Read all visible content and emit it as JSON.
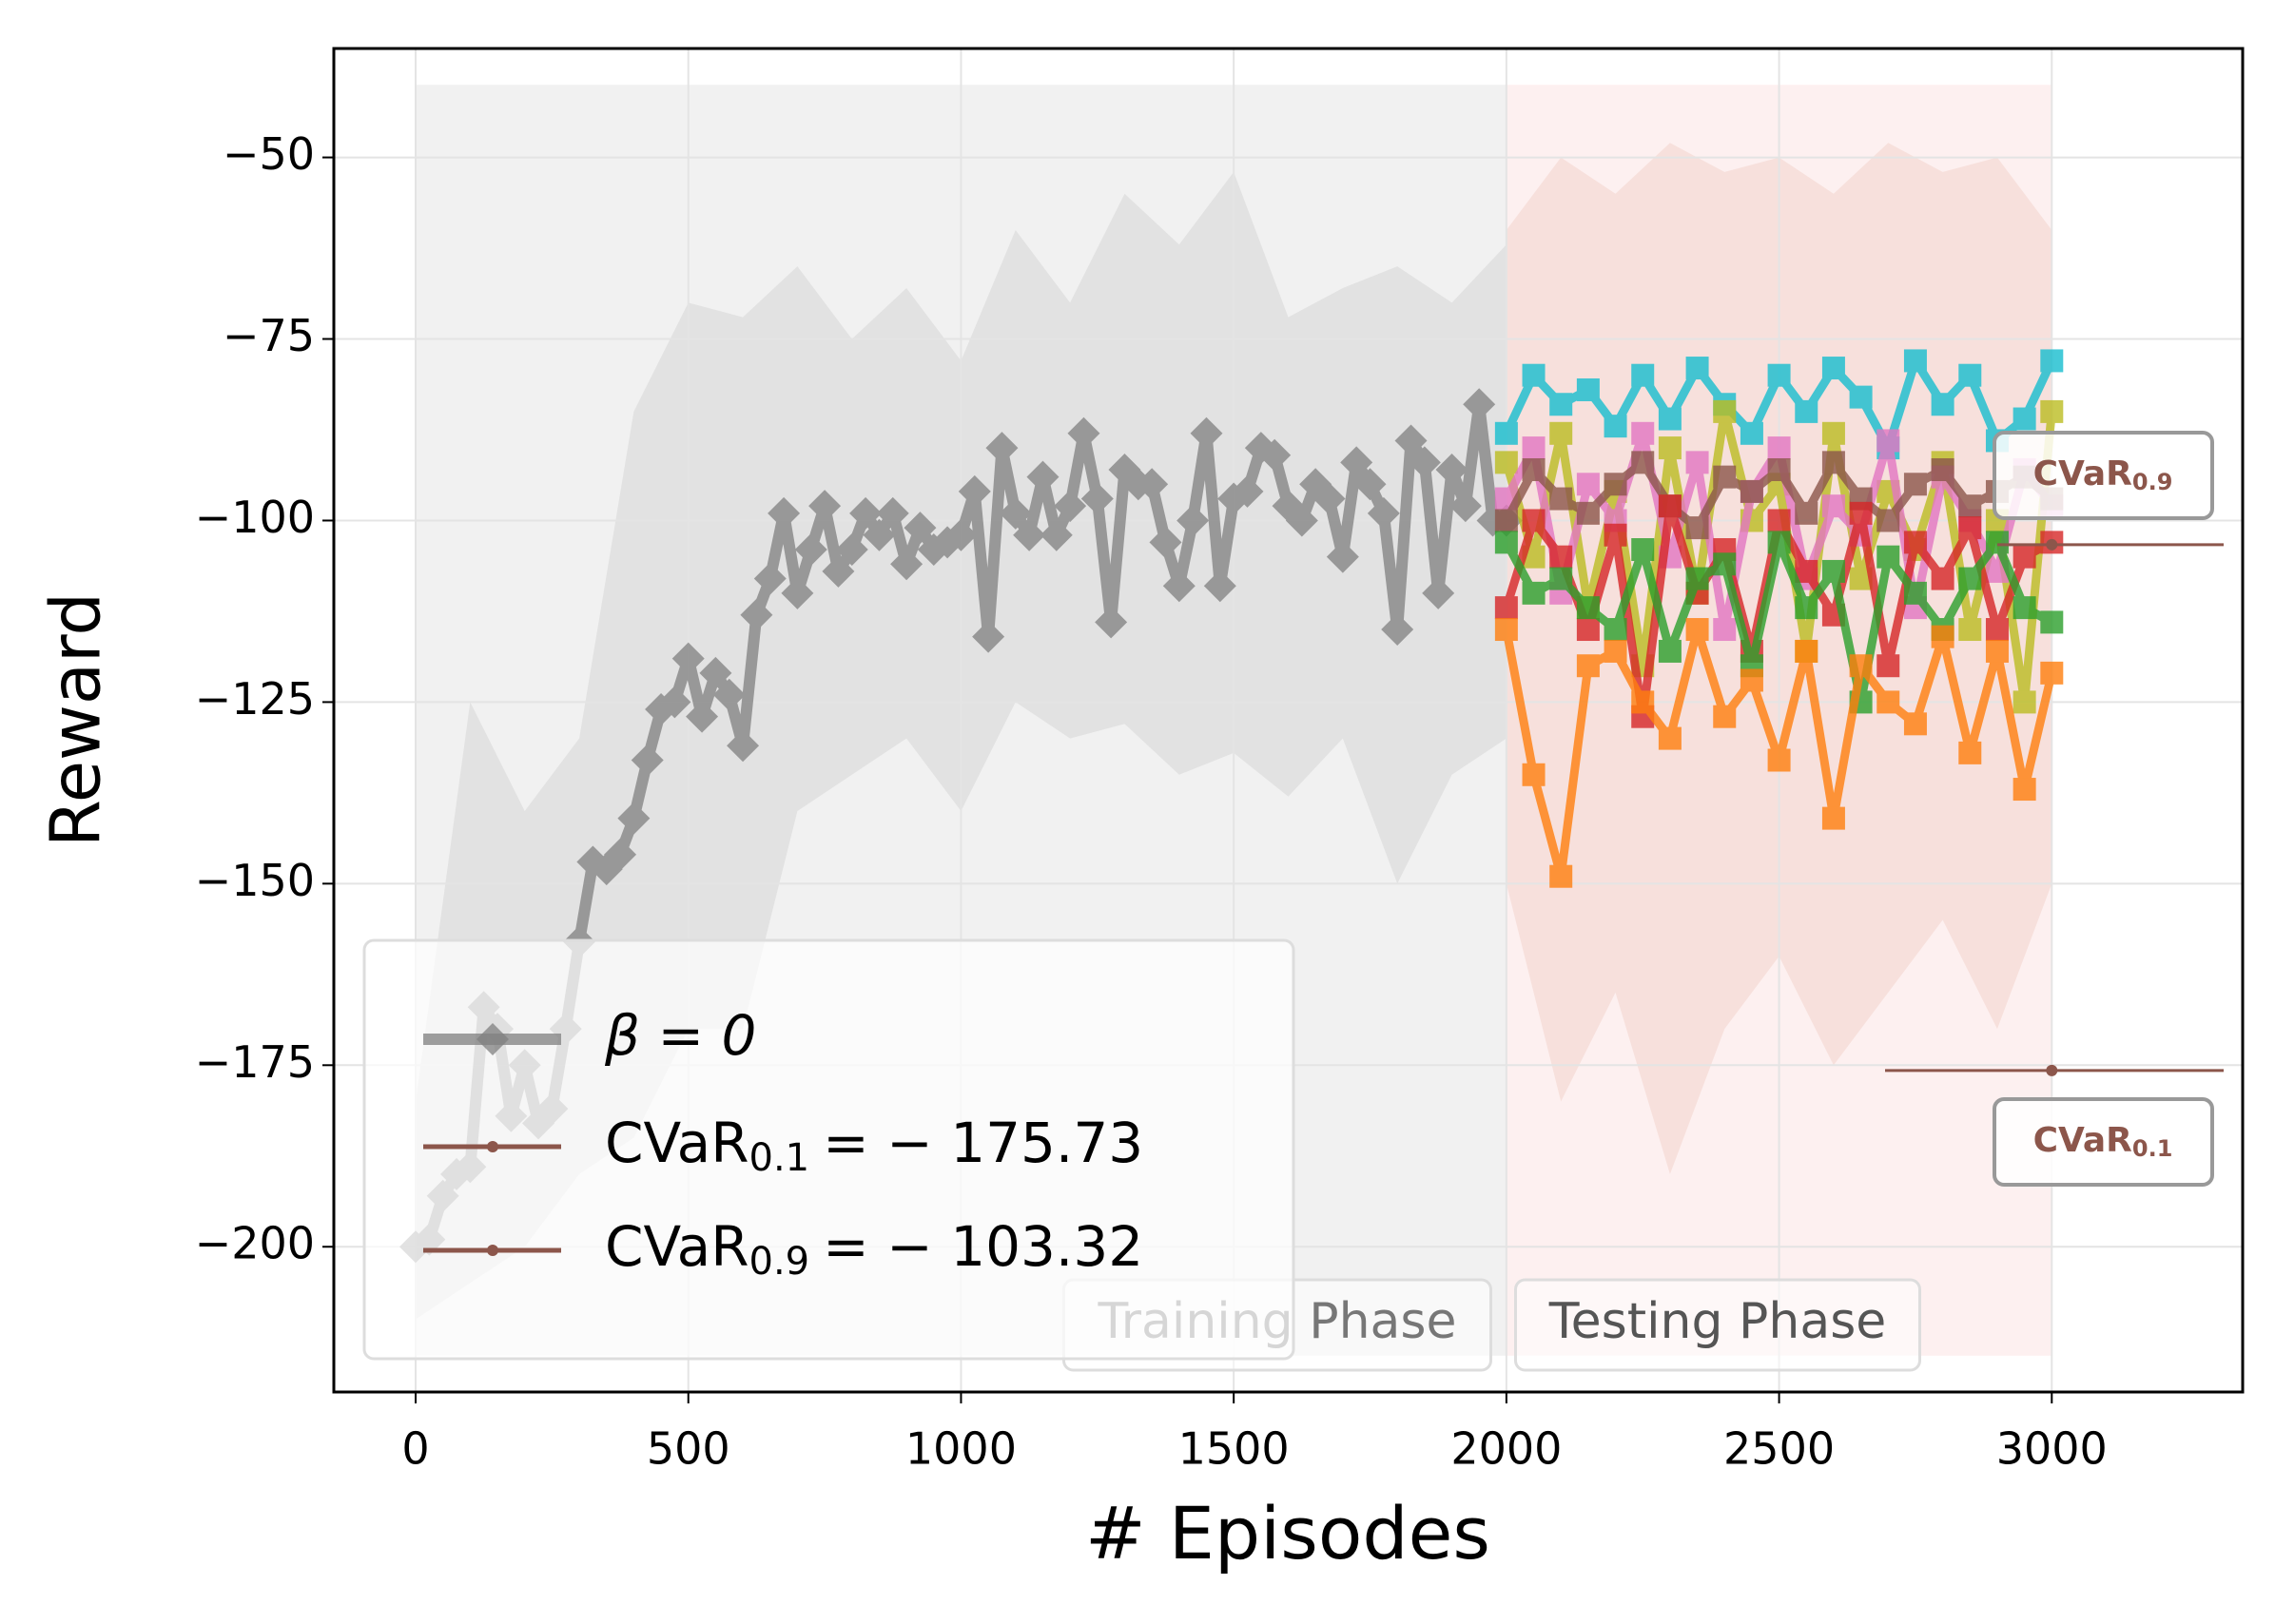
{
  "chart_data": {
    "type": "line",
    "xlabel": "# Episodes",
    "ylabel": "Reward",
    "xlim": [
      -150,
      3350
    ],
    "ylim": [
      -220,
      -35
    ],
    "xticks": [
      0,
      500,
      1000,
      1500,
      2000,
      2500,
      3000
    ],
    "yticks": [
      {
        "value": -50,
        "label": "−50"
      },
      {
        "value": -75,
        "label": "−75"
      },
      {
        "value": -100,
        "label": "−100"
      },
      {
        "value": -125,
        "label": "−125"
      },
      {
        "value": -150,
        "label": "−150"
      },
      {
        "value": -175,
        "label": "−175"
      },
      {
        "value": -200,
        "label": "−200"
      }
    ],
    "grid": true,
    "legend": "lower left",
    "phases": [
      {
        "label": "Training Phase",
        "start": 0,
        "end": 2000,
        "ymin": -215,
        "ymax": -40,
        "color": "#e6e6e6"
      },
      {
        "label": "Testing Phase",
        "start": 2000,
        "end": 3000,
        "ymin": -215,
        "ymax": -40,
        "color": "#fbe3e3"
      }
    ],
    "bands": [
      {
        "color": "#d9d9d9",
        "x": [
          0,
          100,
          200,
          300,
          400,
          500,
          600,
          700,
          800,
          900,
          1000,
          1100,
          1200,
          1300,
          1400,
          1500,
          1600,
          1700,
          1800,
          1900,
          2000
        ],
        "upper": [
          -180,
          -125,
          -140,
          -130,
          -85,
          -70,
          -72,
          -65,
          -75,
          -68,
          -78,
          -60,
          -70,
          -55,
          -62,
          -52,
          -72,
          -68,
          -65,
          -70,
          -62
        ],
        "lower": [
          -210,
          -205,
          -200,
          -190,
          -185,
          -170,
          -170,
          -140,
          -135,
          -130,
          -140,
          -125,
          -130,
          -128,
          -135,
          -132,
          -138,
          -130,
          -150,
          -135,
          -130
        ]
      },
      {
        "color": "#f4d6cf",
        "x": [
          2000,
          2100,
          2200,
          2300,
          2400,
          2500,
          2600,
          2700,
          2800,
          2900,
          3000
        ],
        "upper": [
          -60,
          -50,
          -55,
          -48,
          -52,
          -50,
          -55,
          -48,
          -52,
          -50,
          -60
        ],
        "lower": [
          -150,
          -180,
          -165,
          -190,
          -170,
          -160,
          -175,
          -165,
          -155,
          -170,
          -150
        ]
      }
    ],
    "series": [
      {
        "name": "β = 0",
        "color": "#808080",
        "marker": "diamond",
        "x": [
          0,
          25,
          50,
          75,
          100,
          125,
          150,
          175,
          200,
          225,
          250,
          275,
          300,
          325,
          350,
          375,
          400,
          425,
          450,
          475,
          500,
          525,
          550,
          575,
          600,
          625,
          650,
          675,
          700,
          725,
          750,
          775,
          800,
          825,
          850,
          875,
          900,
          925,
          950,
          975,
          1000,
          1025,
          1050,
          1075,
          1100,
          1125,
          1150,
          1175,
          1200,
          1225,
          1250,
          1275,
          1300,
          1325,
          1350,
          1375,
          1400,
          1425,
          1450,
          1475,
          1500,
          1525,
          1550,
          1575,
          1600,
          1625,
          1650,
          1675,
          1700,
          1725,
          1750,
          1775,
          1800,
          1825,
          1850,
          1875,
          1900,
          1925,
          1950,
          1975,
          2000
        ],
        "values": [
          -200,
          -199,
          -193,
          -190,
          -189,
          -167,
          -170,
          -182,
          -175,
          -183,
          -181,
          -170,
          -158,
          -147,
          -148,
          -146,
          -141,
          -133,
          -126,
          -125,
          -119,
          -127,
          -121,
          -124,
          -131,
          -113,
          -108,
          -99,
          -110,
          -104,
          -98,
          -107,
          -104,
          -99,
          -102,
          -99,
          -106,
          -101,
          -104,
          -103,
          -102,
          -96,
          -116,
          -90,
          -99,
          -102,
          -94,
          -102,
          -98,
          -88,
          -97,
          -114,
          -93,
          -95,
          -95,
          -103,
          -109,
          -100,
          -88,
          -109,
          -97,
          -96,
          -90,
          -91,
          -98,
          -100,
          -95,
          -97,
          -105,
          -92,
          -95,
          -99,
          -115,
          -89,
          -92,
          -110,
          -93,
          -98,
          -84,
          -100,
          -100
        ]
      },
      {
        "color": "#17becf",
        "marker": "square",
        "x": [
          2000,
          2050,
          2100,
          2150,
          2200,
          2250,
          2300,
          2350,
          2400,
          2450,
          2500,
          2550,
          2600,
          2650,
          2700,
          2750,
          2800,
          2850,
          2900,
          2950,
          3000
        ],
        "values": [
          -88,
          -80,
          -84,
          -82,
          -87,
          -80,
          -86,
          -79,
          -84,
          -88,
          -80,
          -85,
          -79,
          -83,
          -90,
          -78,
          -84,
          -80,
          -89,
          -86,
          -78
        ]
      },
      {
        "color": "#bcbd22",
        "marker": "square",
        "x": [
          2000,
          2050,
          2100,
          2150,
          2200,
          2250,
          2300,
          2350,
          2400,
          2450,
          2500,
          2550,
          2600,
          2650,
          2700,
          2750,
          2800,
          2850,
          2900,
          2950,
          3000
        ],
        "values": [
          -92,
          -105,
          -88,
          -112,
          -96,
          -120,
          -90,
          -110,
          -85,
          -100,
          -95,
          -118,
          -88,
          -108,
          -96,
          -104,
          -92,
          -115,
          -100,
          -125,
          -85
        ]
      },
      {
        "color": "#e377c2",
        "marker": "square",
        "x": [
          2000,
          2050,
          2100,
          2150,
          2200,
          2250,
          2300,
          2350,
          2400,
          2450,
          2500,
          2550,
          2600,
          2650,
          2700,
          2750,
          2800,
          2850,
          2900,
          2950,
          3000
        ],
        "values": [
          -97,
          -90,
          -110,
          -95,
          -100,
          -88,
          -105,
          -92,
          -115,
          -96,
          -90,
          -108,
          -98,
          -102,
          -89,
          -112,
          -94,
          -100,
          -107,
          -93,
          -98
        ]
      },
      {
        "color": "#8c564b",
        "marker": "square",
        "x": [
          2000,
          2050,
          2100,
          2150,
          2200,
          2250,
          2300,
          2350,
          2400,
          2450,
          2500,
          2550,
          2600,
          2650,
          2700,
          2750,
          2800,
          2850,
          2900,
          2950,
          3000
        ],
        "values": [
          -100,
          -93,
          -97,
          -99,
          -95,
          -92,
          -98,
          -101,
          -94,
          -96,
          -93,
          -99,
          -92,
          -97,
          -100,
          -95,
          -93,
          -98,
          -96,
          -94,
          -97
        ]
      },
      {
        "color": "#d62728",
        "marker": "square",
        "x": [
          2000,
          2050,
          2100,
          2150,
          2200,
          2250,
          2300,
          2350,
          2400,
          2450,
          2500,
          2550,
          2600,
          2650,
          2700,
          2750,
          2800,
          2850,
          2900,
          2950,
          3000
        ],
        "values": [
          -112,
          -100,
          -105,
          -115,
          -102,
          -127,
          -98,
          -110,
          -104,
          -118,
          -100,
          -107,
          -113,
          -99,
          -120,
          -103,
          -108,
          -101,
          -115,
          -105,
          -103
        ]
      },
      {
        "color": "#2ca02c",
        "marker": "square",
        "x": [
          2000,
          2050,
          2100,
          2150,
          2200,
          2250,
          2300,
          2350,
          2400,
          2450,
          2500,
          2550,
          2600,
          2650,
          2700,
          2750,
          2800,
          2850,
          2900,
          2950,
          3000
        ],
        "values": [
          -103,
          -110,
          -108,
          -112,
          -115,
          -104,
          -118,
          -108,
          -106,
          -120,
          -103,
          -112,
          -107,
          -125,
          -105,
          -110,
          -115,
          -108,
          -103,
          -112,
          -114
        ]
      },
      {
        "color": "#ff7f0e",
        "marker": "square",
        "x": [
          2000,
          2050,
          2100,
          2150,
          2200,
          2250,
          2300,
          2350,
          2400,
          2450,
          2500,
          2550,
          2600,
          2650,
          2700,
          2750,
          2800,
          2850,
          2900,
          2950,
          3000
        ],
        "values": [
          -115,
          -135,
          -149,
          -120,
          -118,
          -125,
          -130,
          -115,
          -127,
          -122,
          -133,
          -118,
          -141,
          -120,
          -125,
          -128,
          -116,
          -132,
          -118,
          -137,
          -121
        ]
      }
    ],
    "reference_lines": [
      {
        "label": "CVaR",
        "sub": "0.1",
        "value": -175.73,
        "value_label": "= − 175.73",
        "color": "#8c564b"
      },
      {
        "label": "CVaR",
        "sub": "0.9",
        "value": -103.32,
        "value_label": "= − 103.32",
        "color": "#8c564b"
      }
    ]
  }
}
